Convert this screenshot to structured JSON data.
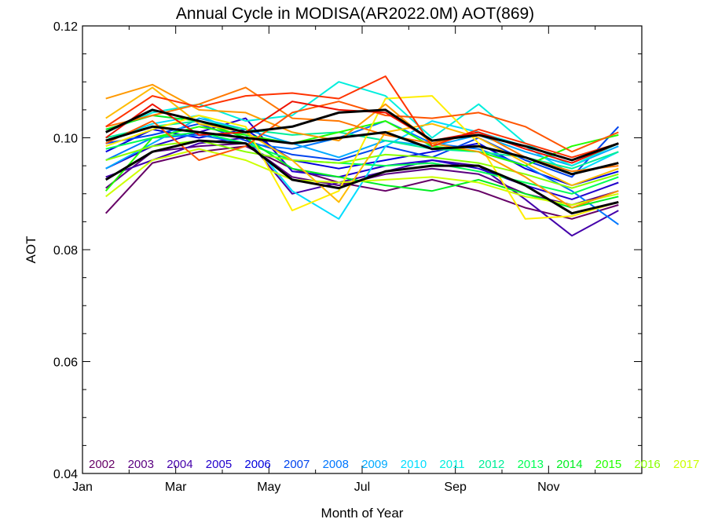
{
  "chart_data": {
    "type": "line",
    "title": "Annual Cycle in MODISA(AR2022.0M) AOT(869)",
    "xlabel": "Month of Year",
    "ylabel": "AOT",
    "xlim": [
      0,
      12
    ],
    "ylim": [
      0.04,
      0.12
    ],
    "x_ticks": [
      {
        "value": 0,
        "label": "Jan"
      },
      {
        "value": 2,
        "label": "Mar"
      },
      {
        "value": 4,
        "label": "May"
      },
      {
        "value": 6,
        "label": "Jul"
      },
      {
        "value": 8,
        "label": "Sep"
      },
      {
        "value": 10,
        "label": "Nov"
      }
    ],
    "y_ticks": [
      {
        "value": 0.04,
        "label": "0.04"
      },
      {
        "value": 0.06,
        "label": "0.06"
      },
      {
        "value": 0.08,
        "label": "0.08"
      },
      {
        "value": 0.1,
        "label": "0.10"
      },
      {
        "value": 0.12,
        "label": "0.12"
      }
    ],
    "legend_position": "bottom",
    "x": [
      0.5,
      1.5,
      2.5,
      3.5,
      4.5,
      5.5,
      6.5,
      7.5,
      8.5,
      9.5,
      10.5,
      11.5
    ],
    "series": [
      {
        "name": "2002",
        "color": "#660066",
        "values": [
          0.0865,
          0.0955,
          0.0975,
          0.0985,
          0.0945,
          0.092,
          0.0905,
          0.0925,
          0.0905,
          0.0875,
          0.0855,
          0.088
        ]
      },
      {
        "name": "2003",
        "color": "#5a0080",
        "values": [
          0.091,
          0.0975,
          0.0985,
          0.099,
          0.093,
          0.0915,
          0.0935,
          0.0945,
          0.0935,
          0.09,
          0.088,
          0.0905
        ]
      },
      {
        "name": "2004",
        "color": "#4400aa",
        "values": [
          0.093,
          0.096,
          0.099,
          0.1,
          0.09,
          0.092,
          0.094,
          0.096,
          0.095,
          0.089,
          0.0825,
          0.087
        ]
      },
      {
        "name": "2005",
        "color": "#2200cc",
        "values": [
          0.0945,
          0.0985,
          0.101,
          0.1035,
          0.094,
          0.093,
          0.095,
          0.096,
          0.0945,
          0.0915,
          0.089,
          0.092
        ]
      },
      {
        "name": "2006",
        "color": "#0000dd",
        "values": [
          0.0975,
          0.1015,
          0.1,
          0.1015,
          0.096,
          0.0945,
          0.096,
          0.0975,
          0.099,
          0.0945,
          0.0915,
          0.094
        ]
      },
      {
        "name": "2007",
        "color": "#0044ee",
        "values": [
          0.099,
          0.1005,
          0.1025,
          0.0995,
          0.097,
          0.096,
          0.0985,
          0.0965,
          0.1,
          0.096,
          0.093,
          0.102
        ]
      },
      {
        "name": "2008",
        "color": "#0077ff",
        "values": [
          0.096,
          0.1,
          0.1005,
          0.099,
          0.098,
          0.1,
          0.103,
          0.099,
          0.098,
          0.095,
          0.0905,
          0.0845
        ]
      },
      {
        "name": "2009",
        "color": "#00aaff",
        "values": [
          0.0945,
          0.099,
          0.1035,
          0.1015,
          0.099,
          0.0965,
          0.0995,
          0.0985,
          0.1005,
          0.0975,
          0.095,
          0.0985
        ]
      },
      {
        "name": "2010",
        "color": "#00ddff",
        "values": [
          0.0995,
          0.1025,
          0.104,
          0.1005,
          0.0905,
          0.0855,
          0.0985,
          0.103,
          0.101,
          0.0985,
          0.0935,
          0.0975
        ]
      },
      {
        "name": "2011",
        "color": "#00eedd",
        "values": [
          0.101,
          0.1045,
          0.106,
          0.103,
          0.104,
          0.11,
          0.1075,
          0.1,
          0.106,
          0.099,
          0.095,
          0.099
        ]
      },
      {
        "name": "2012",
        "color": "#00ee99",
        "values": [
          0.1,
          0.102,
          0.103,
          0.1015,
          0.1005,
          0.101,
          0.0995,
          0.098,
          0.0975,
          0.0965,
          0.0945,
          0.0975
        ]
      },
      {
        "name": "2013",
        "color": "#00ff55",
        "values": [
          0.098,
          0.1,
          0.101,
          0.099,
          0.096,
          0.0955,
          0.095,
          0.0955,
          0.094,
          0.092,
          0.09,
          0.093
        ]
      },
      {
        "name": "2014",
        "color": "#00ee22",
        "values": [
          0.1015,
          0.104,
          0.103,
          0.1,
          0.0945,
          0.093,
          0.0915,
          0.0905,
          0.0925,
          0.09,
          0.0875,
          0.0895
        ]
      },
      {
        "name": "2015",
        "color": "#22ff00",
        "values": [
          0.0905,
          0.1,
          0.102,
          0.1005,
          0.099,
          0.101,
          0.103,
          0.0985,
          0.0975,
          0.095,
          0.0985,
          0.1005
        ]
      },
      {
        "name": "2016",
        "color": "#88ff00",
        "values": [
          0.096,
          0.0985,
          0.0995,
          0.0975,
          0.096,
          0.0955,
          0.097,
          0.0965,
          0.0955,
          0.0935,
          0.091,
          0.0935
        ]
      },
      {
        "name": "2017",
        "color": "#ccff00",
        "values": [
          0.0895,
          0.096,
          0.098,
          0.096,
          0.0925,
          0.092,
          0.0925,
          0.093,
          0.092,
          0.0895,
          0.088,
          0.09
        ]
      },
      {
        "color": "#ffee00",
        "values": [
          0.0985,
          0.1015,
          0.104,
          0.102,
          0.087,
          0.0905,
          0.107,
          0.1075,
          0.099,
          0.0855,
          0.086,
          0.0885
        ]
      },
      {
        "color": "#ffbb00",
        "values": [
          0.1035,
          0.109,
          0.1025,
          0.101,
          0.096,
          0.0885,
          0.101,
          0.1025,
          0.1,
          0.0955,
          0.0915,
          0.0945
        ]
      },
      {
        "color": "#ff9900",
        "values": [
          0.107,
          0.1095,
          0.105,
          0.1045,
          0.101,
          0.0995,
          0.106,
          0.099,
          0.0975,
          0.093,
          0.0875,
          0.0905
        ]
      },
      {
        "color": "#ff7700",
        "values": [
          0.102,
          0.104,
          0.106,
          0.109,
          0.1035,
          0.103,
          0.1005,
          0.099,
          0.101,
          0.0965,
          0.094,
          0.095
        ]
      },
      {
        "color": "#ff5500",
        "values": [
          0.099,
          0.103,
          0.096,
          0.0985,
          0.1045,
          0.1065,
          0.104,
          0.1035,
          0.1045,
          0.102,
          0.0975,
          0.101
        ]
      },
      {
        "color": "#ff3300",
        "values": [
          0.102,
          0.1075,
          0.1055,
          0.1075,
          0.108,
          0.107,
          0.111,
          0.0985,
          0.1015,
          0.099,
          0.0965,
          0.099
        ]
      },
      {
        "color": "#ee1100",
        "values": [
          0.1,
          0.106,
          0.1005,
          0.101,
          0.1065,
          0.105,
          0.1045,
          0.0995,
          0.101,
          0.098,
          0.0955,
          0.099
        ]
      },
      {
        "color": "#000000",
        "values": [
          0.101,
          0.105,
          0.103,
          0.101,
          0.102,
          0.1045,
          0.105,
          0.0995,
          0.1005,
          0.0985,
          0.096,
          0.099
        ]
      },
      {
        "color": "#000000",
        "values": [
          0.0995,
          0.102,
          0.101,
          0.1,
          0.099,
          0.1,
          0.101,
          0.098,
          0.0985,
          0.0965,
          0.0935,
          0.0955
        ]
      },
      {
        "color": "#000000",
        "values": [
          0.0925,
          0.0975,
          0.0995,
          0.099,
          0.0925,
          0.091,
          0.094,
          0.095,
          0.095,
          0.0915,
          0.0865,
          0.0885
        ]
      }
    ]
  }
}
